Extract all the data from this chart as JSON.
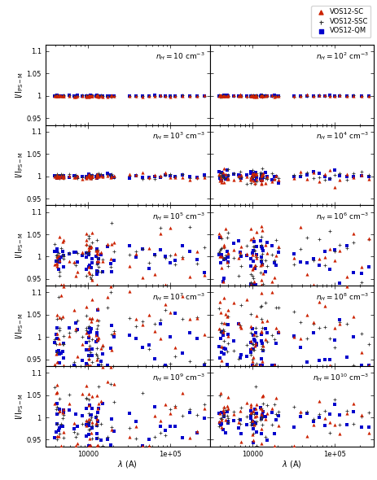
{
  "panel_label_texts": [
    "$n_H=10$ cm$^{-3}$",
    "$n_H=10^2$ cm$^{-3}$",
    "$n_H=10^3$ cm$^{-3}$",
    "$n_H=10^4$ cm$^{-3}$",
    "$n_H=10^5$ cm$^{-3}$",
    "$n_H=10^6$ cm$^{-3}$",
    "$n_H=10^7$ cm$^{-3}$",
    "$n_H=10^8$ cm$^{-3}$",
    "$n_H=10^9$ cm$^{-3}$",
    "$n_H=10^{10}$ cm$^{-3}$"
  ],
  "xlim": [
    3000,
    300000
  ],
  "ylim": [
    0.935,
    1.115
  ],
  "yticks": [
    0.95,
    1.0,
    1.05,
    1.1
  ],
  "yticklabels": [
    "0.95",
    "1",
    "1.05",
    "1.1"
  ],
  "xlabel": "$\\lambda$ (A)",
  "ylabel": "I/I$_{\\mathrm{PS-M}}$",
  "legend_labels": [
    "VOS12-SC",
    "VOS12-SSC",
    "VOS12-QM"
  ],
  "colors": {
    "SC": "#cc2200",
    "SSC": "#333333",
    "QM": "#0000cc"
  },
  "nrows": 5,
  "ncols": 2,
  "scatter_amp": [
    0.0008,
    0.0008,
    0.003,
    0.008,
    0.025,
    0.03,
    0.035,
    0.035,
    0.03,
    0.02
  ]
}
